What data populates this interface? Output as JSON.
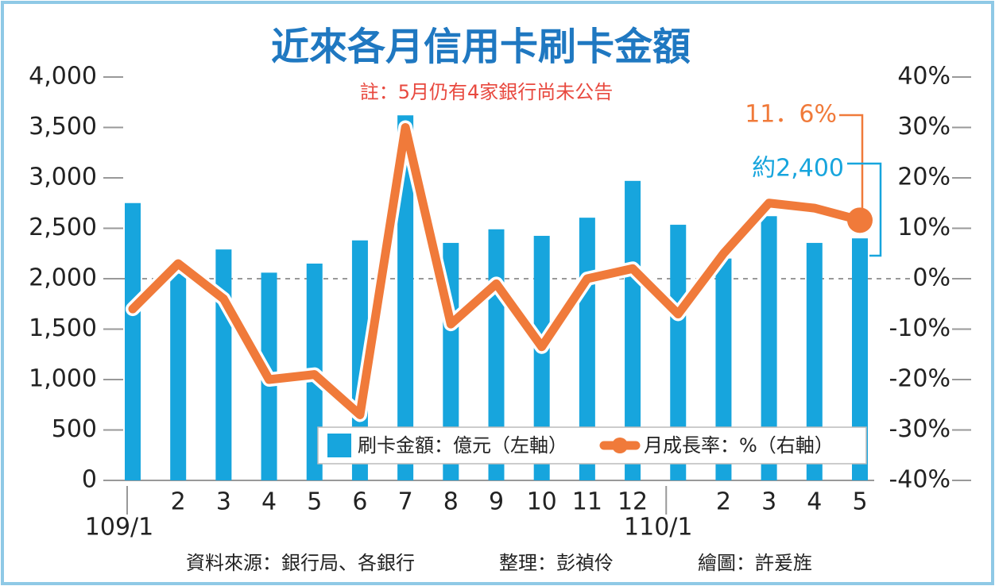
{
  "chart_data": {
    "type": "combo",
    "title": "近來各月信用卡刷卡金額",
    "subtitle": "註：5月仍有4家銀行尚未公告",
    "categories": [
      "109/1",
      "2",
      "3",
      "4",
      "5",
      "6",
      "7",
      "8",
      "9",
      "10",
      "11",
      "12",
      "110/1",
      "2",
      "3",
      "4",
      "5"
    ],
    "series": [
      {
        "name": "刷卡金額：億元（左軸）",
        "type": "bar",
        "color": "#17a5dd",
        "values": [
          2750,
          2050,
          2290,
          2060,
          2150,
          2380,
          3620,
          2355,
          2490,
          2425,
          2605,
          2970,
          2535,
          2200,
          2620,
          2355,
          2400
        ]
      },
      {
        "name": "月成長率：%（右軸）",
        "type": "line",
        "axis": "y2",
        "color": "#f07a3a",
        "values": [
          -6,
          3,
          -4,
          -20,
          -19,
          -27,
          30,
          -9,
          -1,
          -13.5,
          0,
          2,
          -7,
          5,
          15,
          14,
          11.6
        ]
      }
    ],
    "ylim": [
      0,
      4000
    ],
    "yticks": [
      0,
      500,
      {
        "value": 1000,
        "label": "1,000"
      },
      {
        "value": 1500,
        "label": "1,500"
      },
      {
        "value": 2000,
        "label": "2,000"
      },
      {
        "value": 2500,
        "label": "2,500"
      },
      {
        "value": 3000,
        "label": "3,000"
      },
      {
        "value": 3500,
        "label": "3,500"
      },
      {
        "value": 4000,
        "label": "4,000"
      }
    ],
    "y2lim": [
      -40,
      40
    ],
    "y2ticks": [
      {
        "value": -40,
        "label": "-40%"
      },
      {
        "value": -30,
        "label": "-30%"
      },
      {
        "value": -20,
        "label": "-20%"
      },
      {
        "value": -10,
        "label": "-10%"
      },
      {
        "value": 0,
        "label": "0%"
      },
      {
        "value": 10,
        "label": "10%"
      },
      {
        "value": 20,
        "label": "20%"
      },
      {
        "value": 30,
        "label": "30%"
      },
      {
        "value": 40,
        "label": "40%"
      }
    ],
    "reference_line_y2": 0,
    "annotations": [
      {
        "text": "11．6%",
        "color": "#f07a3a"
      },
      {
        "text": "約2,400",
        "color": "#17a5dd"
      }
    ],
    "credits": [
      "資料來源：銀行局、各銀行",
      "整理：彭禎伶",
      "繪圖：許爰旌"
    ]
  }
}
